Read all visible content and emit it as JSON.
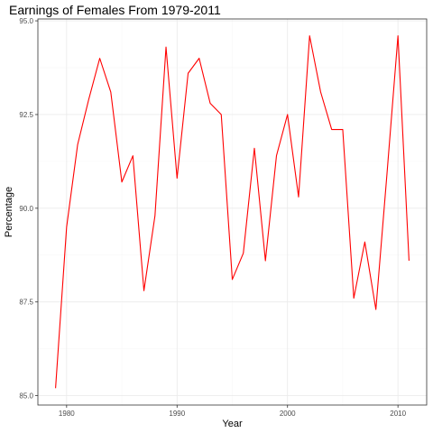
{
  "chart_data": {
    "type": "line",
    "title": "Earnings of Females From 1979-2011",
    "xlabel": "Year",
    "ylabel": "Percentage",
    "x": [
      1979,
      1980,
      1981,
      1982,
      1983,
      1984,
      1985,
      1986,
      1987,
      1988,
      1989,
      1990,
      1991,
      1992,
      1993,
      1994,
      1995,
      1996,
      1997,
      1998,
      1999,
      2000,
      2001,
      2002,
      2003,
      2004,
      2005,
      2006,
      2007,
      2008,
      2009,
      2010,
      2011
    ],
    "series": [
      {
        "color": "#ff0000",
        "values": [
          85.2,
          89.5,
          91.7,
          92.9,
          94.0,
          93.1,
          90.7,
          91.4,
          87.8,
          89.8,
          94.3,
          90.8,
          93.6,
          94.0,
          92.8,
          92.5,
          88.1,
          88.8,
          91.6,
          88.6,
          91.4,
          92.5,
          90.3,
          94.6,
          93.1,
          92.1,
          92.1,
          87.6,
          89.1,
          87.3,
          90.9,
          94.6,
          88.6
        ]
      }
    ],
    "xlim": [
      1977.4,
      2012.6
    ],
    "ylim": [
      84.75,
      95.05
    ],
    "xticks": [
      1980,
      1990,
      2000,
      2010
    ],
    "xtick_labels": [
      "1980",
      "1990",
      "2000",
      "2010"
    ],
    "yticks": [
      85.0,
      87.5,
      90.0,
      92.5,
      95.0
    ],
    "ytick_labels": [
      "85.0",
      "87.5",
      "90.0",
      "92.5",
      "95.0"
    ],
    "grid": true,
    "legend": "none"
  }
}
